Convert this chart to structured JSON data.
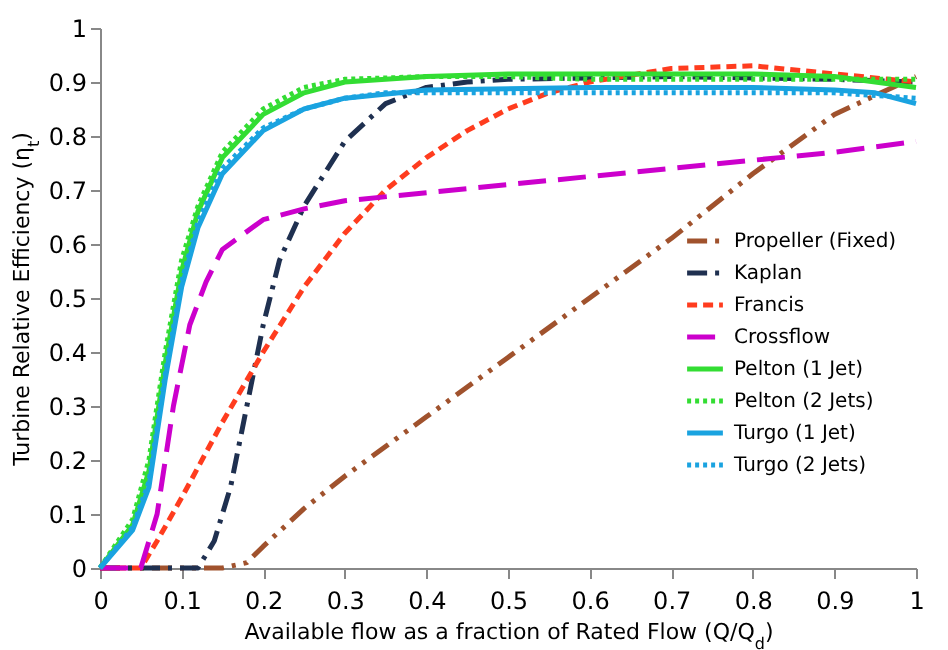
{
  "chart_data": {
    "type": "line",
    "xlabel": "Available flow as a fraction of Rated Flow (Q/Q$_{d}$)",
    "ylabel": "Turbine Relative Efficiency (η$_{t}$)",
    "xlim": [
      0,
      1
    ],
    "xticks": [
      0,
      0.1,
      0.2,
      0.3,
      0.4,
      0.5,
      0.6,
      0.7,
      0.8,
      0.9,
      1
    ],
    "ylim": [
      0,
      1
    ],
    "yticks": [
      0,
      0.1,
      0.2,
      0.3,
      0.4,
      0.5,
      0.6,
      0.7,
      0.8,
      0.9,
      1
    ],
    "grid": false,
    "legend": "right",
    "marker": "none",
    "series": [
      {
        "name": "Propeller (Fixed)",
        "color": "#a0522d",
        "line_style": "dashdotdot",
        "x": [
          0,
          0.15,
          0.18,
          0.2,
          0.25,
          0.3,
          0.4,
          0.5,
          0.6,
          0.7,
          0.8,
          0.9,
          1
        ],
        "values": [
          0,
          0,
          0.01,
          0.04,
          0.11,
          0.17,
          0.28,
          0.39,
          0.5,
          0.61,
          0.73,
          0.84,
          0.91
        ]
      },
      {
        "name": "Kaplan",
        "color": "#1f3050",
        "line_style": "dashdot",
        "x": [
          0,
          0.12,
          0.14,
          0.16,
          0.18,
          0.2,
          0.22,
          0.25,
          0.3,
          0.35,
          0.4,
          0.45,
          0.5,
          0.7,
          0.9,
          1
        ],
        "values": [
          0,
          0,
          0.05,
          0.15,
          0.3,
          0.45,
          0.57,
          0.67,
          0.79,
          0.86,
          0.89,
          0.9,
          0.905,
          0.91,
          0.905,
          0.9
        ]
      },
      {
        "name": "Francis",
        "color": "#ff3c1e",
        "line_style": "dashed",
        "x": [
          0,
          0.05,
          0.07,
          0.1,
          0.15,
          0.2,
          0.25,
          0.3,
          0.35,
          0.4,
          0.45,
          0.5,
          0.55,
          0.6,
          0.7,
          0.8,
          0.9,
          1
        ],
        "values": [
          0,
          0,
          0.05,
          0.13,
          0.27,
          0.4,
          0.52,
          0.62,
          0.7,
          0.76,
          0.81,
          0.85,
          0.88,
          0.9,
          0.925,
          0.93,
          0.915,
          0.9
        ]
      },
      {
        "name": "Crossflow",
        "color": "#cc00cc",
        "line_style": "longdash",
        "x": [
          0,
          0.05,
          0.07,
          0.09,
          0.11,
          0.13,
          0.15,
          0.2,
          0.25,
          0.3,
          0.4,
          0.5,
          0.6,
          0.7,
          0.8,
          0.9,
          1
        ],
        "values": [
          0,
          0,
          0.1,
          0.3,
          0.45,
          0.53,
          0.59,
          0.645,
          0.665,
          0.68,
          0.695,
          0.71,
          0.725,
          0.74,
          0.755,
          0.77,
          0.79
        ]
      },
      {
        "name": "Pelton (1 Jet)",
        "color": "#33dd33",
        "line_style": "solid",
        "x": [
          0,
          0.02,
          0.04,
          0.06,
          0.08,
          0.1,
          0.12,
          0.15,
          0.2,
          0.25,
          0.3,
          0.4,
          0.5,
          0.6,
          0.7,
          0.8,
          0.9,
          1
        ],
        "values": [
          0,
          0.04,
          0.08,
          0.18,
          0.38,
          0.55,
          0.66,
          0.76,
          0.84,
          0.88,
          0.9,
          0.91,
          0.915,
          0.915,
          0.915,
          0.915,
          0.91,
          0.89
        ]
      },
      {
        "name": "Pelton (2 Jets)",
        "color": "#33dd33",
        "line_style": "dotted",
        "x": [
          0,
          0.02,
          0.04,
          0.06,
          0.08,
          0.1,
          0.12,
          0.15,
          0.2,
          0.25,
          0.3,
          0.4,
          0.5,
          0.6,
          0.7,
          0.8,
          0.9,
          1
        ],
        "values": [
          0,
          0.045,
          0.09,
          0.2,
          0.4,
          0.57,
          0.67,
          0.77,
          0.85,
          0.89,
          0.905,
          0.91,
          0.91,
          0.905,
          0.905,
          0.905,
          0.905,
          0.905
        ]
      },
      {
        "name": "Turgo (1 Jet)",
        "color": "#1aa3e0",
        "line_style": "solid",
        "x": [
          0,
          0.04,
          0.06,
          0.08,
          0.1,
          0.12,
          0.15,
          0.2,
          0.25,
          0.3,
          0.4,
          0.6,
          0.8,
          0.9,
          0.95,
          1
        ],
        "values": [
          0,
          0.07,
          0.15,
          0.35,
          0.52,
          0.63,
          0.73,
          0.81,
          0.85,
          0.87,
          0.885,
          0.89,
          0.89,
          0.885,
          0.88,
          0.86
        ]
      },
      {
        "name": "Turgo (2 Jets)",
        "color": "#1aa3e0",
        "line_style": "dotted",
        "x": [
          0,
          0.04,
          0.06,
          0.08,
          0.1,
          0.12,
          0.15,
          0.2,
          0.25,
          0.3,
          0.35,
          0.5,
          0.7,
          0.9,
          0.95,
          1
        ],
        "values": [
          0,
          0.075,
          0.16,
          0.36,
          0.53,
          0.64,
          0.74,
          0.815,
          0.85,
          0.87,
          0.88,
          0.88,
          0.88,
          0.88,
          0.875,
          0.87
        ]
      }
    ]
  }
}
